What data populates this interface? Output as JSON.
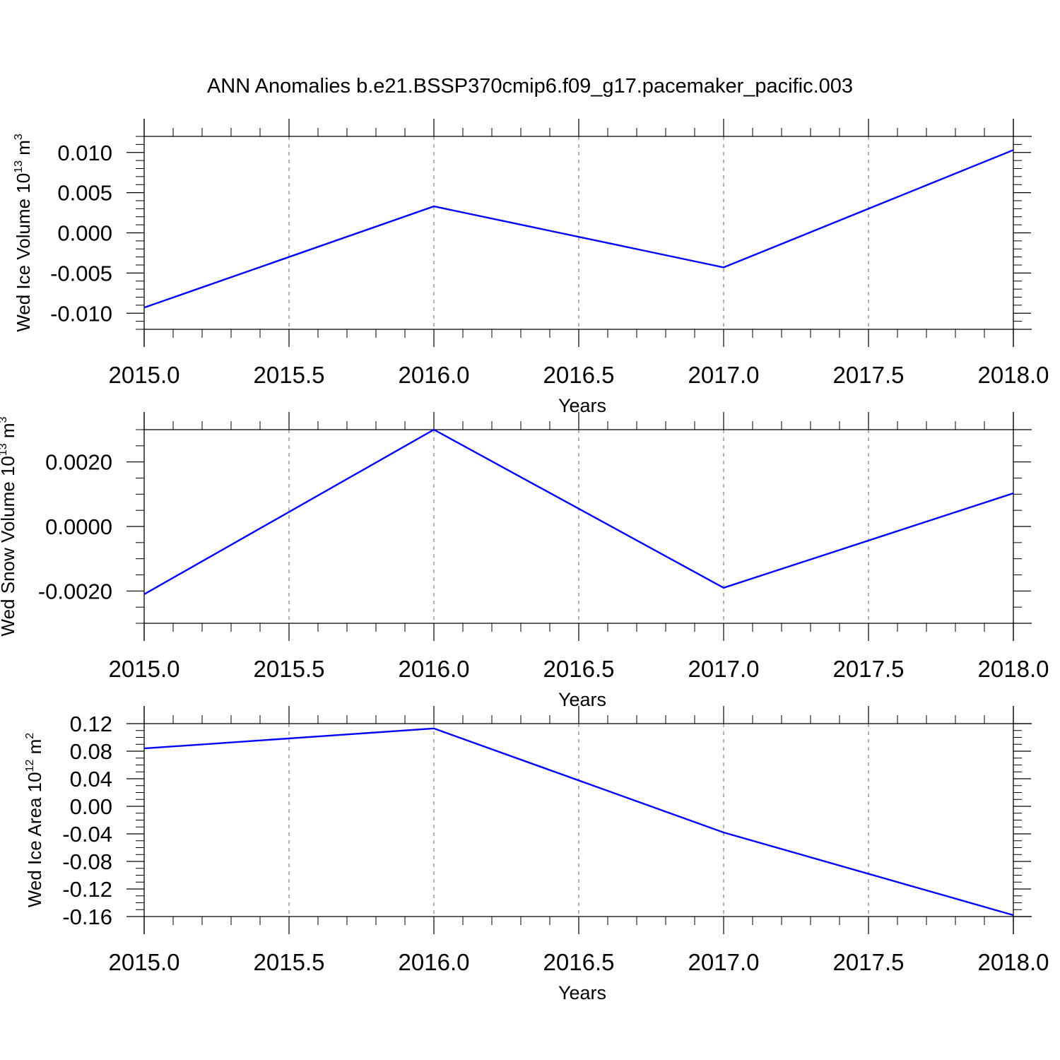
{
  "figure_title": "ANN Anomalies b.e21.BSSP370cmip6.f09_g17.pacemaker_pacific.003",
  "line_color": "#0000ff",
  "grid_color": "#808080",
  "chart_data": [
    {
      "type": "line",
      "title": "ANN Anomalies b.e21.BSSP370cmip6.f09_g17.pacemaker_pacific.003",
      "xlabel": "Years",
      "ylabel": {
        "text": "Wed Ice Volume 10",
        "exp": "13",
        "unit": " m",
        "unit_exp": "3"
      },
      "x": [
        2015.0,
        2016.0,
        2017.0,
        2018.0
      ],
      "y": [
        -0.0093,
        0.0033,
        -0.0043,
        0.0103
      ],
      "xlim": [
        2015.0,
        2018.0
      ],
      "ylim": [
        -0.012,
        0.012
      ],
      "xticks": [
        2015.0,
        2015.5,
        2016.0,
        2016.5,
        2017.0,
        2017.5,
        2018.0
      ],
      "xtick_labels": [
        "2015.0",
        "2015.5",
        "2016.0",
        "2016.5",
        "2017.0",
        "2017.5",
        "2018.0"
      ],
      "yticks": [
        -0.01,
        -0.005,
        0.0,
        0.005,
        0.01
      ],
      "ytick_labels": [
        "-0.010",
        "-0.005",
        "0.000",
        "0.005",
        "0.010"
      ],
      "yminor_step": 0.001,
      "grid": "x dashed"
    },
    {
      "type": "line",
      "title": "",
      "xlabel": "Years",
      "ylabel": {
        "text": "Wed Snow Volume 10",
        "exp": "13",
        "unit": " m",
        "unit_exp": "3"
      },
      "x": [
        2015.0,
        2016.0,
        2017.0,
        2018.0
      ],
      "y": [
        -0.0021,
        0.003,
        -0.0019,
        0.00103
      ],
      "xlim": [
        2015.0,
        2018.0
      ],
      "ylim": [
        -0.003,
        0.003
      ],
      "xticks": [
        2015.0,
        2015.5,
        2016.0,
        2016.5,
        2017.0,
        2017.5,
        2018.0
      ],
      "xtick_labels": [
        "2015.0",
        "2015.5",
        "2016.0",
        "2016.5",
        "2017.0",
        "2017.5",
        "2018.0"
      ],
      "yticks": [
        -0.002,
        0.0,
        0.002
      ],
      "ytick_labels": [
        "-0.0020",
        "0.0000",
        "0.0020"
      ],
      "yminor_step": 0.0005,
      "grid": "x dashed"
    },
    {
      "type": "line",
      "title": "",
      "xlabel": "Years",
      "ylabel": {
        "text": "Wed Ice Area 10",
        "exp": "12",
        "unit": " m",
        "unit_exp": "2"
      },
      "x": [
        2015.0,
        2016.0,
        2017.0,
        2018.0
      ],
      "y": [
        0.084,
        0.113,
        -0.038,
        -0.158
      ],
      "xlim": [
        2015.0,
        2018.0
      ],
      "ylim": [
        -0.16,
        0.12
      ],
      "xticks": [
        2015.0,
        2015.5,
        2016.0,
        2016.5,
        2017.0,
        2017.5,
        2018.0
      ],
      "xtick_labels": [
        "2015.0",
        "2015.5",
        "2016.0",
        "2016.5",
        "2017.0",
        "2017.5",
        "2018.0"
      ],
      "yticks": [
        -0.16,
        -0.12,
        -0.08,
        -0.04,
        0.0,
        0.04,
        0.08,
        0.12
      ],
      "ytick_labels": [
        "-0.16",
        "-0.12",
        "-0.08",
        "-0.04",
        "0.00",
        "0.04",
        "0.08",
        "0.12"
      ],
      "yminor_step": 0.01,
      "grid": "x dashed"
    }
  ]
}
